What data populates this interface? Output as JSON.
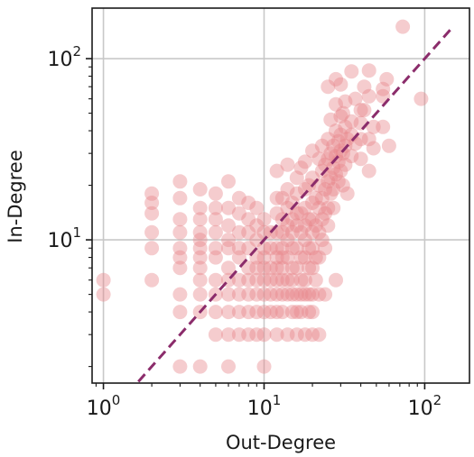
{
  "chart_data": {
    "type": "scatter",
    "title": "",
    "xlabel": "Out-Degree",
    "ylabel": "In-Degree",
    "xscale": "log",
    "yscale": "log",
    "xlim": [
      0.85,
      190
    ],
    "ylim": [
      1.62,
      190
    ],
    "xticks": [
      {
        "value": 1,
        "base": "10",
        "exp": "0"
      },
      {
        "value": 10,
        "base": "10",
        "exp": "1"
      },
      {
        "value": 100,
        "base": "10",
        "exp": "2"
      }
    ],
    "yticks": [
      {
        "value": 10,
        "base": "10",
        "exp": "1"
      },
      {
        "value": 100,
        "base": "10",
        "exp": "2"
      }
    ],
    "grid": true,
    "colors": {
      "points": "#e8868a",
      "reference_line": "#8b2c6b",
      "grid": "#c8c8c8",
      "frame": "#1a1a1a"
    },
    "reference_line": {
      "style": "dashed",
      "x": [
        1.65,
        150
      ],
      "y": [
        1.65,
        150
      ]
    },
    "points": [
      [
        1,
        6
      ],
      [
        1,
        5
      ],
      [
        2,
        18
      ],
      [
        2,
        16
      ],
      [
        2,
        14
      ],
      [
        2,
        11
      ],
      [
        2,
        9
      ],
      [
        2,
        6
      ],
      [
        3,
        21
      ],
      [
        3,
        17
      ],
      [
        3,
        13
      ],
      [
        3,
        11
      ],
      [
        3,
        9
      ],
      [
        3,
        8
      ],
      [
        3,
        7
      ],
      [
        3,
        5
      ],
      [
        3,
        4
      ],
      [
        3,
        2
      ],
      [
        4,
        19
      ],
      [
        4,
        15
      ],
      [
        4,
        13
      ],
      [
        4,
        11
      ],
      [
        4,
        10
      ],
      [
        4,
        9
      ],
      [
        4,
        8
      ],
      [
        4,
        7
      ],
      [
        4,
        6
      ],
      [
        4,
        5
      ],
      [
        4,
        4
      ],
      [
        4,
        2
      ],
      [
        5,
        18
      ],
      [
        5,
        15
      ],
      [
        5,
        13
      ],
      [
        5,
        11
      ],
      [
        5,
        9
      ],
      [
        5,
        8
      ],
      [
        5,
        6
      ],
      [
        5,
        5
      ],
      [
        5,
        4
      ],
      [
        5,
        3
      ],
      [
        6,
        21
      ],
      [
        6,
        15
      ],
      [
        6,
        12
      ],
      [
        6,
        10
      ],
      [
        6,
        9
      ],
      [
        6,
        7
      ],
      [
        6,
        6
      ],
      [
        6,
        5
      ],
      [
        6,
        4
      ],
      [
        6,
        3
      ],
      [
        6,
        2
      ],
      [
        7,
        17
      ],
      [
        7,
        14
      ],
      [
        7,
        11
      ],
      [
        7,
        9
      ],
      [
        7,
        8
      ],
      [
        7,
        6
      ],
      [
        7,
        5
      ],
      [
        7,
        4
      ],
      [
        7,
        3
      ],
      [
        8,
        16
      ],
      [
        8,
        13
      ],
      [
        8,
        11
      ],
      [
        8,
        9
      ],
      [
        8,
        7
      ],
      [
        8,
        6
      ],
      [
        8,
        5
      ],
      [
        8,
        4
      ],
      [
        8,
        3
      ],
      [
        9,
        15
      ],
      [
        9,
        12
      ],
      [
        9,
        10
      ],
      [
        9,
        8
      ],
      [
        9,
        7
      ],
      [
        9,
        6
      ],
      [
        9,
        5
      ],
      [
        9,
        4
      ],
      [
        9,
        3
      ],
      [
        10,
        13
      ],
      [
        10,
        11
      ],
      [
        10,
        9
      ],
      [
        10,
        8
      ],
      [
        10,
        7
      ],
      [
        10,
        6
      ],
      [
        10,
        5
      ],
      [
        10,
        4
      ],
      [
        10,
        3
      ],
      [
        10,
        2
      ],
      [
        11,
        11
      ],
      [
        11,
        9
      ],
      [
        11,
        7
      ],
      [
        11,
        6
      ],
      [
        11,
        5
      ],
      [
        11,
        4
      ],
      [
        12,
        24
      ],
      [
        12,
        17
      ],
      [
        12,
        14
      ],
      [
        12,
        11
      ],
      [
        12,
        9
      ],
      [
        12,
        8
      ],
      [
        12,
        7
      ],
      [
        12,
        6
      ],
      [
        12,
        5
      ],
      [
        12,
        4
      ],
      [
        12,
        3
      ],
      [
        13,
        17
      ],
      [
        13,
        13
      ],
      [
        13,
        11
      ],
      [
        13,
        9
      ],
      [
        13,
        8
      ],
      [
        13,
        7
      ],
      [
        13,
        6
      ],
      [
        13,
        5
      ],
      [
        13,
        4
      ],
      [
        14,
        26
      ],
      [
        14,
        19
      ],
      [
        14,
        15
      ],
      [
        14,
        12
      ],
      [
        14,
        10
      ],
      [
        14,
        8
      ],
      [
        14,
        6
      ],
      [
        14,
        5
      ],
      [
        14,
        3
      ],
      [
        15,
        16
      ],
      [
        15,
        13
      ],
      [
        15,
        11
      ],
      [
        15,
        9
      ],
      [
        15,
        7
      ],
      [
        15,
        6
      ],
      [
        15,
        5
      ],
      [
        15,
        4
      ],
      [
        16,
        22
      ],
      [
        16,
        18
      ],
      [
        16,
        14
      ],
      [
        16,
        12
      ],
      [
        16,
        9
      ],
      [
        16,
        7
      ],
      [
        16,
        5
      ],
      [
        16,
        4
      ],
      [
        16,
        3
      ],
      [
        17,
        25
      ],
      [
        17,
        14
      ],
      [
        17,
        11
      ],
      [
        17,
        8
      ],
      [
        17,
        6
      ],
      [
        17,
        5
      ],
      [
        17,
        4
      ],
      [
        18,
        27
      ],
      [
        18,
        19
      ],
      [
        18,
        15
      ],
      [
        18,
        12
      ],
      [
        18,
        10
      ],
      [
        18,
        8
      ],
      [
        18,
        6
      ],
      [
        18,
        5
      ],
      [
        18,
        3
      ],
      [
        19,
        20
      ],
      [
        19,
        13
      ],
      [
        19,
        9
      ],
      [
        19,
        7
      ],
      [
        19,
        5
      ],
      [
        19,
        4
      ],
      [
        20,
        31
      ],
      [
        20,
        22
      ],
      [
        20,
        16
      ],
      [
        20,
        13
      ],
      [
        20,
        11
      ],
      [
        20,
        9
      ],
      [
        20,
        7
      ],
      [
        20,
        5
      ],
      [
        20,
        4
      ],
      [
        20,
        3
      ],
      [
        21,
        17
      ],
      [
        21,
        12
      ],
      [
        21,
        8
      ],
      [
        21,
        6
      ],
      [
        22,
        28
      ],
      [
        22,
        20
      ],
      [
        22,
        15
      ],
      [
        22,
        11
      ],
      [
        22,
        8
      ],
      [
        22,
        5
      ],
      [
        22,
        3
      ],
      [
        23,
        33
      ],
      [
        23,
        24
      ],
      [
        23,
        17
      ],
      [
        23,
        13
      ],
      [
        23,
        10
      ],
      [
        24,
        26
      ],
      [
        24,
        19
      ],
      [
        24,
        14
      ],
      [
        24,
        9
      ],
      [
        24,
        5
      ],
      [
        25,
        70
      ],
      [
        25,
        36
      ],
      [
        25,
        28
      ],
      [
        25,
        21
      ],
      [
        25,
        15
      ],
      [
        25,
        12
      ],
      [
        26,
        46
      ],
      [
        26,
        30
      ],
      [
        26,
        22
      ],
      [
        26,
        18
      ],
      [
        27,
        33
      ],
      [
        27,
        25
      ],
      [
        27,
        19
      ],
      [
        27,
        15
      ],
      [
        28,
        77
      ],
      [
        28,
        56
      ],
      [
        28,
        40
      ],
      [
        28,
        29
      ],
      [
        28,
        23
      ],
      [
        28,
        6
      ],
      [
        29,
        35
      ],
      [
        29,
        27
      ],
      [
        29,
        21
      ],
      [
        30,
        72
      ],
      [
        30,
        48
      ],
      [
        30,
        38
      ],
      [
        30,
        31
      ],
      [
        30,
        24
      ],
      [
        31,
        50
      ],
      [
        31,
        30
      ],
      [
        31,
        20
      ],
      [
        32,
        58
      ],
      [
        32,
        42
      ],
      [
        32,
        33
      ],
      [
        32,
        26
      ],
      [
        33,
        36
      ],
      [
        33,
        18
      ],
      [
        35,
        85
      ],
      [
        35,
        45
      ],
      [
        35,
        38
      ],
      [
        35,
        29
      ],
      [
        37,
        60
      ],
      [
        37,
        34
      ],
      [
        40,
        52
      ],
      [
        40,
        44
      ],
      [
        40,
        36
      ],
      [
        40,
        28
      ],
      [
        42,
        70
      ],
      [
        42,
        52
      ],
      [
        45,
        86
      ],
      [
        45,
        62
      ],
      [
        45,
        36
      ],
      [
        45,
        24
      ],
      [
        48,
        42
      ],
      [
        48,
        32
      ],
      [
        55,
        68
      ],
      [
        55,
        62
      ],
      [
        55,
        42
      ],
      [
        58,
        77
      ],
      [
        60,
        33
      ],
      [
        73,
        150
      ],
      [
        95,
        60
      ]
    ]
  }
}
